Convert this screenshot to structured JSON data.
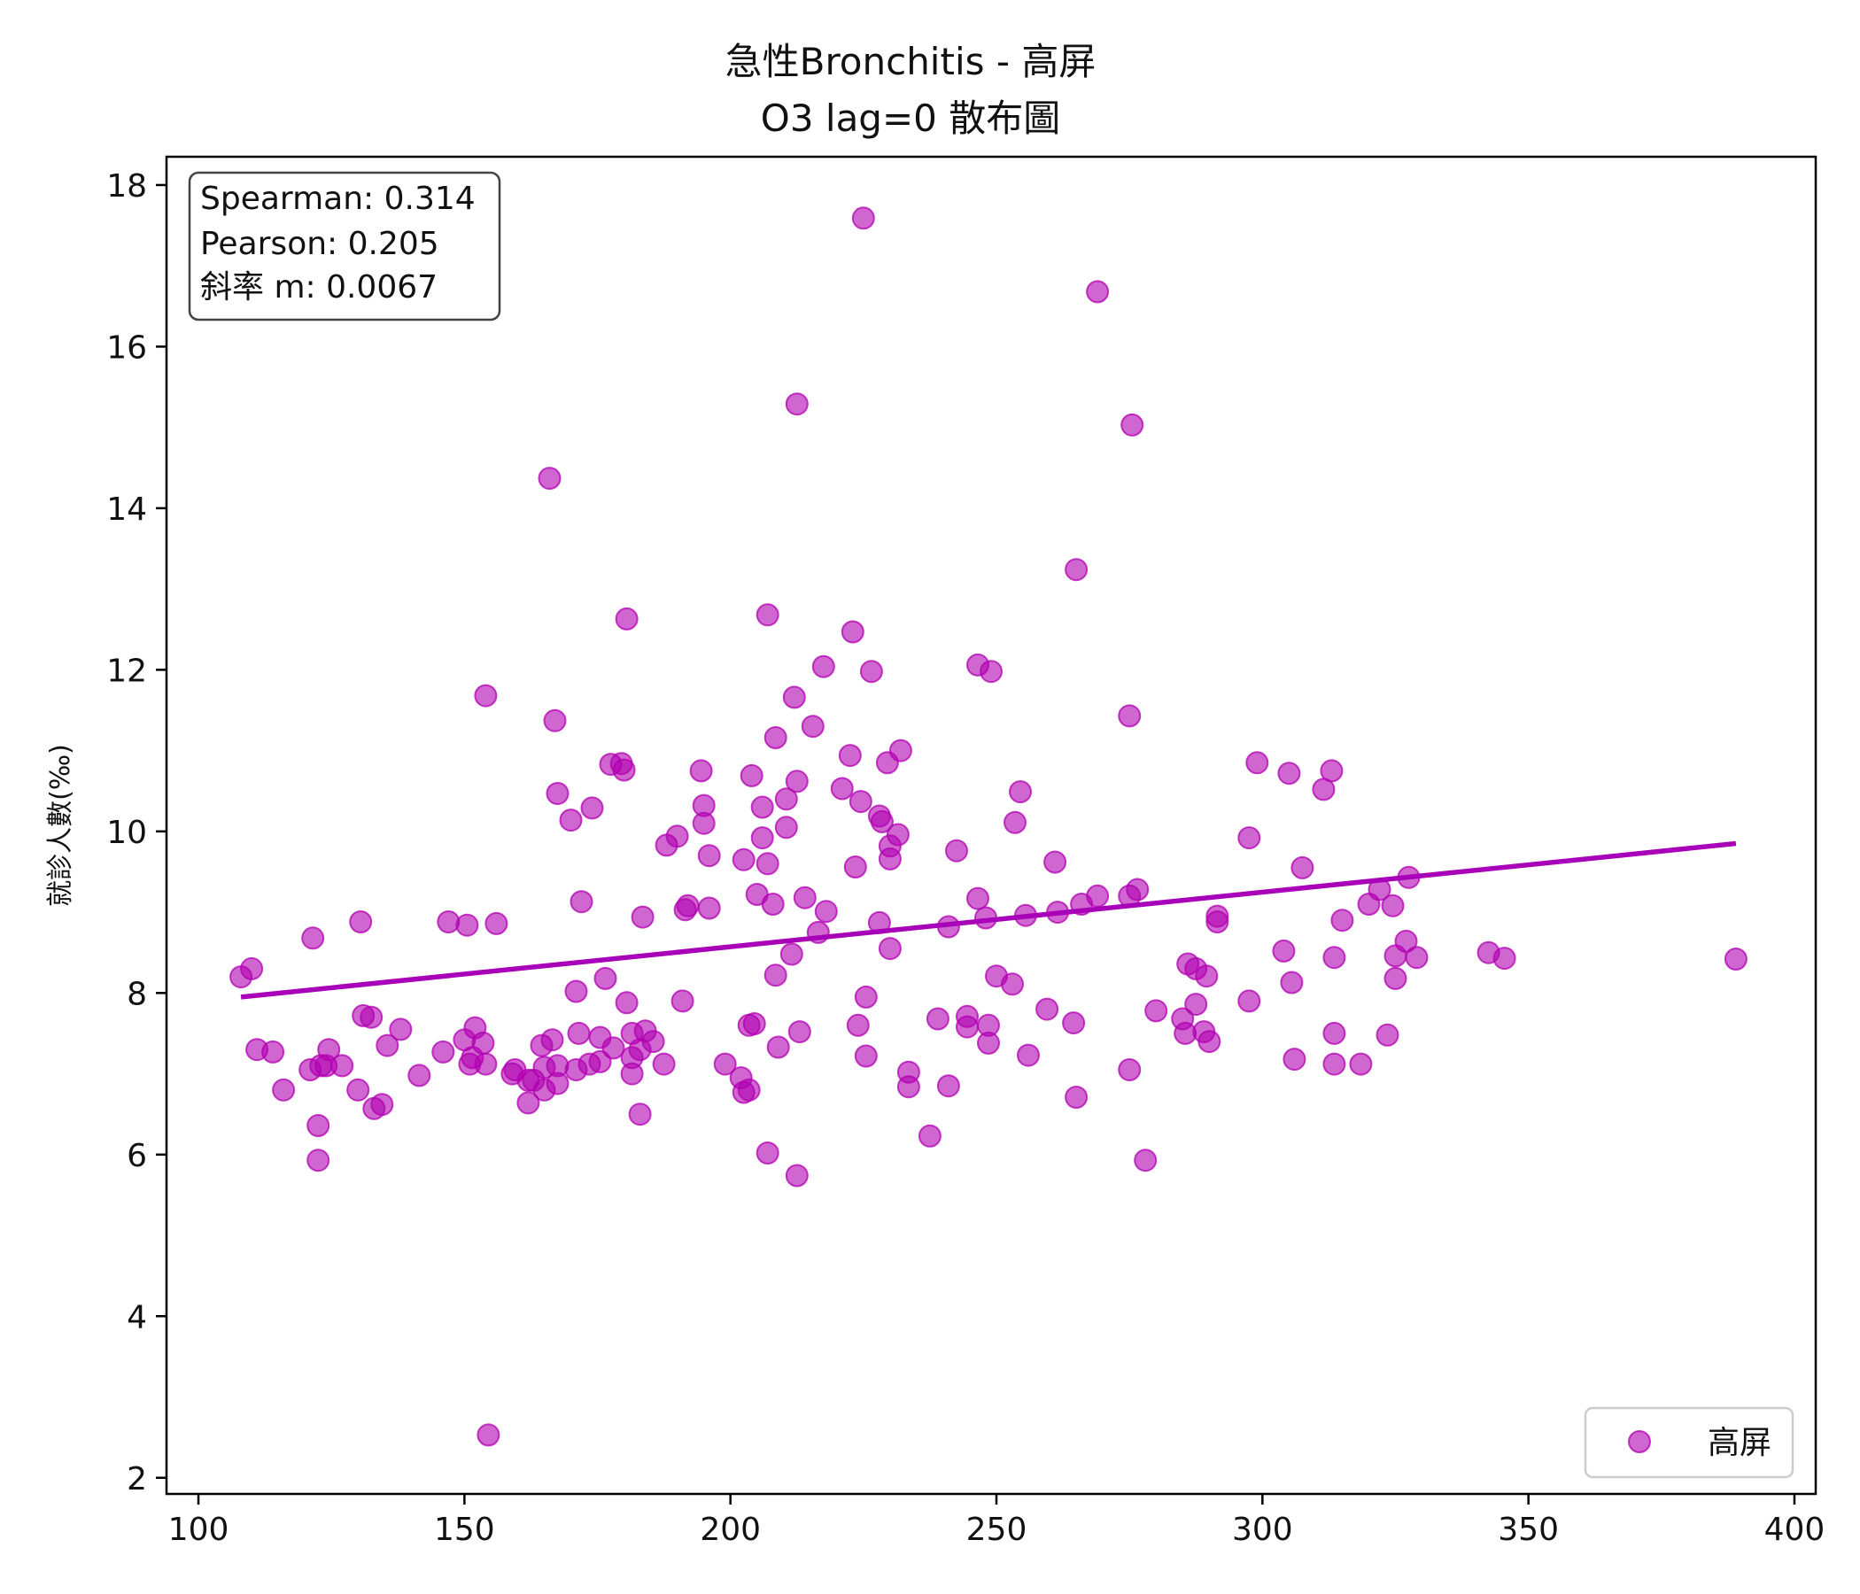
{
  "colors": {
    "point": "#b100b1",
    "fit_line": "#a800b8",
    "axis": "#000000",
    "legend_border": "#cccccc",
    "stats_border": "#444444"
  },
  "chart_data": {
    "type": "scatter",
    "title": "急性Bronchitis - 高屏",
    "subtitle": "O3 lag=0 散布圖",
    "xlabel": "",
    "ylabel": "就診人數(‰)",
    "xlim": [
      94,
      404
    ],
    "ylim": [
      1.8,
      18.35
    ],
    "xticks": [
      100,
      150,
      200,
      250,
      300,
      350,
      400
    ],
    "yticks": [
      2,
      4,
      6,
      8,
      10,
      12,
      14,
      16,
      18
    ],
    "grid": false,
    "legend": {
      "position": "bottom-right",
      "entries": [
        "高屏"
      ]
    },
    "stats": [
      "Spearman: 0.314",
      "Pearson: 0.205",
      "斜率 m: 0.0067"
    ],
    "fit_line": {
      "slope": 0.0067,
      "x": [
        108,
        389
      ],
      "y": [
        7.95,
        9.85
      ]
    },
    "series": [
      {
        "name": "高屏",
        "points": [
          [
            108,
            8.2
          ],
          [
            110,
            8.3
          ],
          [
            111,
            7.3
          ],
          [
            114,
            7.27
          ],
          [
            116,
            6.8
          ],
          [
            121,
            7.05
          ],
          [
            121.5,
            8.68
          ],
          [
            122.5,
            6.36
          ],
          [
            122.5,
            5.93
          ],
          [
            123,
            7.1
          ],
          [
            124,
            7.1
          ],
          [
            124.5,
            7.3
          ],
          [
            127,
            7.1
          ],
          [
            130,
            6.8
          ],
          [
            130.5,
            8.88
          ],
          [
            131,
            7.72
          ],
          [
            132.5,
            7.7
          ],
          [
            133,
            6.57
          ],
          [
            134.5,
            6.62
          ],
          [
            135.5,
            7.35
          ],
          [
            138,
            7.55
          ],
          [
            141.5,
            6.98
          ],
          [
            146,
            7.27
          ],
          [
            147,
            8.88
          ],
          [
            150,
            7.42
          ],
          [
            150.5,
            8.84
          ],
          [
            151,
            7.12
          ],
          [
            151.5,
            7.2
          ],
          [
            152,
            7.57
          ],
          [
            153.5,
            7.38
          ],
          [
            154,
            7.12
          ],
          [
            154,
            11.68
          ],
          [
            154.5,
            2.53
          ],
          [
            156,
            8.86
          ],
          [
            159,
            7.0
          ],
          [
            159.5,
            7.05
          ],
          [
            162,
            6.92
          ],
          [
            162,
            6.64
          ],
          [
            163,
            6.92
          ],
          [
            164.5,
            7.35
          ],
          [
            165,
            7.08
          ],
          [
            165,
            6.8
          ],
          [
            166,
            14.37
          ],
          [
            166.5,
            7.42
          ],
          [
            167,
            11.37
          ],
          [
            167.5,
            10.47
          ],
          [
            167.5,
            7.1
          ],
          [
            167.5,
            6.88
          ],
          [
            170,
            10.14
          ],
          [
            171,
            8.02
          ],
          [
            171,
            7.05
          ],
          [
            171.5,
            7.5
          ],
          [
            172,
            9.13
          ],
          [
            173.5,
            7.12
          ],
          [
            174,
            10.29
          ],
          [
            175.5,
            7.45
          ],
          [
            175.5,
            7.15
          ],
          [
            176.5,
            8.18
          ],
          [
            177.5,
            10.83
          ],
          [
            178,
            7.32
          ],
          [
            179.5,
            10.84
          ],
          [
            180,
            10.76
          ],
          [
            180.5,
            12.63
          ],
          [
            180.5,
            7.88
          ],
          [
            181.5,
            7.5
          ],
          [
            181.5,
            7.2
          ],
          [
            181.5,
            7.0
          ],
          [
            183,
            6.5
          ],
          [
            183,
            7.3
          ],
          [
            183.5,
            8.94
          ],
          [
            184,
            7.53
          ],
          [
            185.5,
            7.4
          ],
          [
            187.5,
            7.12
          ],
          [
            188,
            9.83
          ],
          [
            190,
            9.94
          ],
          [
            191,
            7.9
          ],
          [
            191.5,
            9.03
          ],
          [
            192,
            9.08
          ],
          [
            194.5,
            10.75
          ],
          [
            195,
            10.32
          ],
          [
            195,
            10.1
          ],
          [
            196,
            9.7
          ],
          [
            196,
            9.05
          ],
          [
            199,
            7.12
          ],
          [
            202,
            6.95
          ],
          [
            202.5,
            9.65
          ],
          [
            202.5,
            6.77
          ],
          [
            203.5,
            7.6
          ],
          [
            203.5,
            6.8
          ],
          [
            204,
            10.69
          ],
          [
            204.5,
            7.62
          ],
          [
            205,
            9.22
          ],
          [
            206,
            10.3
          ],
          [
            206,
            9.92
          ],
          [
            207,
            12.68
          ],
          [
            207,
            9.6
          ],
          [
            207,
            6.02
          ],
          [
            208,
            9.1
          ],
          [
            208.5,
            11.16
          ],
          [
            208.5,
            8.22
          ],
          [
            209,
            7.33
          ],
          [
            210.5,
            10.4
          ],
          [
            210.5,
            10.05
          ],
          [
            211.5,
            8.48
          ],
          [
            212,
            11.66
          ],
          [
            212.5,
            15.29
          ],
          [
            212.5,
            10.62
          ],
          [
            212.5,
            5.74
          ],
          [
            213,
            7.52
          ],
          [
            214,
            9.18
          ],
          [
            215.5,
            11.3
          ],
          [
            216.5,
            8.75
          ],
          [
            217.5,
            12.04
          ],
          [
            218,
            9.01
          ],
          [
            221,
            10.53
          ],
          [
            222.5,
            10.94
          ],
          [
            223,
            12.47
          ],
          [
            223.5,
            9.56
          ],
          [
            224,
            7.6
          ],
          [
            224.5,
            10.37
          ],
          [
            225,
            17.59
          ],
          [
            225.5,
            7.95
          ],
          [
            225.5,
            7.22
          ],
          [
            226.5,
            11.98
          ],
          [
            228,
            10.19
          ],
          [
            228,
            8.87
          ],
          [
            228.5,
            10.12
          ],
          [
            229.5,
            10.85
          ],
          [
            230,
            9.82
          ],
          [
            230,
            9.66
          ],
          [
            230,
            8.55
          ],
          [
            231.5,
            9.96
          ],
          [
            232,
            11.0
          ],
          [
            233.5,
            7.02
          ],
          [
            233.5,
            6.84
          ],
          [
            237.5,
            6.23
          ],
          [
            239,
            7.68
          ],
          [
            241,
            6.85
          ],
          [
            241,
            8.82
          ],
          [
            242.5,
            9.76
          ],
          [
            244.5,
            7.71
          ],
          [
            244.5,
            7.58
          ],
          [
            246.5,
            12.06
          ],
          [
            246.5,
            9.17
          ],
          [
            248,
            8.93
          ],
          [
            248.5,
            7.6
          ],
          [
            248.5,
            7.38
          ],
          [
            249,
            11.98
          ],
          [
            250,
            8.21
          ],
          [
            253,
            8.11
          ],
          [
            253.5,
            10.11
          ],
          [
            254.5,
            10.49
          ],
          [
            255.5,
            8.96
          ],
          [
            256,
            7.23
          ],
          [
            259.5,
            7.8
          ],
          [
            261,
            9.62
          ],
          [
            261.5,
            9.0
          ],
          [
            264.5,
            7.63
          ],
          [
            265,
            13.24
          ],
          [
            265,
            6.71
          ],
          [
            266,
            9.1
          ],
          [
            269,
            9.2
          ],
          [
            269,
            16.68
          ],
          [
            275,
            11.43
          ],
          [
            275,
            9.2
          ],
          [
            275,
            7.05
          ],
          [
            275.5,
            15.03
          ],
          [
            276.5,
            9.28
          ],
          [
            278,
            5.93
          ],
          [
            280,
            7.78
          ],
          [
            285,
            7.68
          ],
          [
            285.5,
            7.5
          ],
          [
            286,
            8.36
          ],
          [
            287.5,
            7.86
          ],
          [
            287.5,
            8.3
          ],
          [
            289,
            7.52
          ],
          [
            289.5,
            8.21
          ],
          [
            290,
            7.4
          ],
          [
            291.5,
            8.95
          ],
          [
            291.5,
            8.88
          ],
          [
            297.5,
            7.9
          ],
          [
            297.5,
            9.92
          ],
          [
            299,
            10.85
          ],
          [
            304,
            8.52
          ],
          [
            305,
            10.72
          ],
          [
            305.5,
            8.13
          ],
          [
            306,
            7.18
          ],
          [
            307.5,
            9.55
          ],
          [
            311.5,
            10.52
          ],
          [
            313,
            10.75
          ],
          [
            313.5,
            8.44
          ],
          [
            313.5,
            7.5
          ],
          [
            313.5,
            7.12
          ],
          [
            315,
            8.9
          ],
          [
            318.5,
            7.12
          ],
          [
            320,
            9.1
          ],
          [
            322,
            9.28
          ],
          [
            323.5,
            7.48
          ],
          [
            324.5,
            9.08
          ],
          [
            325,
            8.46
          ],
          [
            325,
            8.18
          ],
          [
            327,
            8.64
          ],
          [
            327.5,
            9.43
          ],
          [
            329,
            8.44
          ],
          [
            342.5,
            8.5
          ],
          [
            345.5,
            8.43
          ],
          [
            389,
            8.42
          ]
        ]
      }
    ]
  }
}
